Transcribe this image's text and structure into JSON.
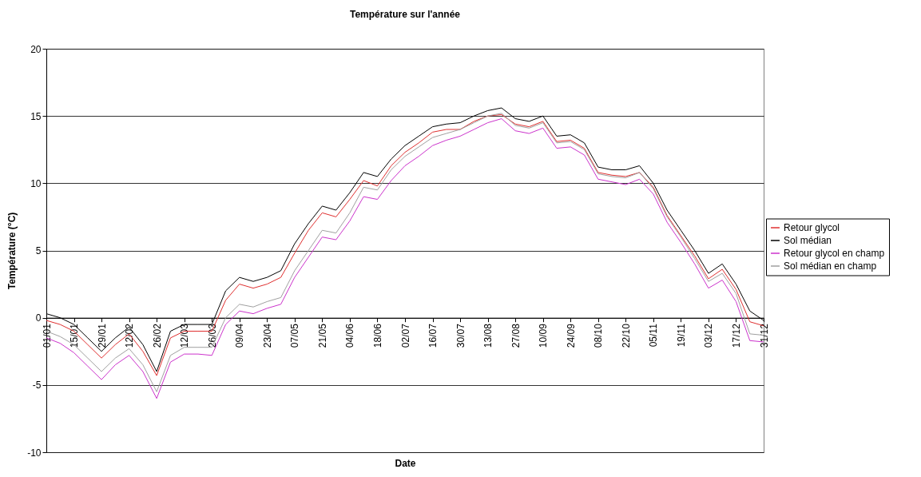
{
  "chart_data": {
    "type": "line",
    "title": "Température sur l'année",
    "xlabel": "Date",
    "ylabel": "Température (°C)",
    "x": [
      "--01-01",
      "--01-08",
      "--01-15",
      "--01-22",
      "--01-29",
      "--02-05",
      "--02-12",
      "--02-19",
      "--02-26",
      "--03-05",
      "--03-12",
      "--03-19",
      "--03-26",
      "--04-02",
      "--04-09",
      "--04-16",
      "--04-23",
      "--04-30",
      "--05-07",
      "--05-14",
      "--05-21",
      "--05-28",
      "--06-04",
      "--06-11",
      "--06-18",
      "--06-25",
      "--07-02",
      "--07-09",
      "--07-16",
      "--07-23",
      "--07-30",
      "--08-06",
      "--08-13",
      "--08-20",
      "--08-27",
      "--09-03",
      "--09-10",
      "--09-17",
      "--09-24",
      "--10-01",
      "--10-08",
      "--10-15",
      "--10-22",
      "--10-29",
      "--11-05",
      "--11-12",
      "--11-19",
      "--11-26",
      "--12-03",
      "--12-10",
      "--12-17",
      "--12-24",
      "--12-31"
    ],
    "series": [
      {
        "name": "Retour glycol",
        "color": "#e03030",
        "values": [
          -0.2,
          -0.5,
          -1.0,
          -2.0,
          -3.0,
          -2.0,
          -1.2,
          -2.5,
          -4.3,
          -1.5,
          -1.0,
          -1.0,
          -1.0,
          1.3,
          2.5,
          2.2,
          2.5,
          3.0,
          4.8,
          6.5,
          7.8,
          7.5,
          8.8,
          10.2,
          9.8,
          11.3,
          12.3,
          13.0,
          13.8,
          14.0,
          14.0,
          14.6,
          15.0,
          15.1,
          14.4,
          14.2,
          14.6,
          13.1,
          13.2,
          12.6,
          10.8,
          10.6,
          10.5,
          10.8,
          9.7,
          7.6,
          6.1,
          4.6,
          2.9,
          3.6,
          2.1,
          -0.3,
          -0.6
        ]
      },
      {
        "name": "Sol médian",
        "color": "#000000",
        "values": [
          0.3,
          0,
          -0.5,
          -1.5,
          -2.5,
          -1.5,
          -0.7,
          -2.0,
          -4.0,
          -1.0,
          -0.5,
          -0.5,
          -0.5,
          2.0,
          3.0,
          2.7,
          3.0,
          3.5,
          5.5,
          7.0,
          8.3,
          8.0,
          9.3,
          10.8,
          10.5,
          11.8,
          12.8,
          13.5,
          14.2,
          14.4,
          14.5,
          15.0,
          15.4,
          15.6,
          14.8,
          14.6,
          15.0,
          13.5,
          13.6,
          13.0,
          11.2,
          11.0,
          11.0,
          11.3,
          10.0,
          8.0,
          6.5,
          5.0,
          3.3,
          4.0,
          2.5,
          0.5,
          -0.2
        ]
      },
      {
        "name": "Retour glycol en champ",
        "color": "#cc33cc",
        "values": [
          -1.5,
          -1.9,
          -2.6,
          -3.6,
          -4.6,
          -3.5,
          -2.8,
          -4.0,
          -6.0,
          -3.3,
          -2.7,
          -2.7,
          -2.8,
          -0.5,
          0.5,
          0.3,
          0.7,
          1.0,
          3.0,
          4.5,
          6.0,
          5.8,
          7.2,
          9.0,
          8.8,
          10.2,
          11.3,
          12.0,
          12.8,
          13.2,
          13.5,
          14.0,
          14.5,
          14.8,
          13.9,
          13.7,
          14.1,
          12.6,
          12.7,
          12.1,
          10.3,
          10.1,
          9.9,
          10.3,
          9.2,
          7.1,
          5.6,
          4.0,
          2.2,
          2.8,
          1.2,
          -1.7,
          -1.8
        ]
      },
      {
        "name": "Sol médian en champ",
        "color": "#a0a0a0",
        "values": [
          -1.0,
          -1.4,
          -2.0,
          -3.0,
          -4.0,
          -3.0,
          -2.3,
          -3.5,
          -5.5,
          -2.8,
          -2.2,
          -2.2,
          -2.2,
          0.0,
          1.0,
          0.8,
          1.2,
          1.5,
          3.5,
          5.0,
          6.5,
          6.3,
          7.8,
          9.7,
          9.5,
          11.0,
          12.0,
          12.7,
          13.4,
          13.7,
          14.0,
          14.5,
          15.0,
          15.2,
          14.3,
          14.1,
          14.5,
          13.0,
          13.1,
          12.5,
          10.7,
          10.5,
          10.4,
          10.8,
          9.6,
          7.5,
          6.0,
          4.4,
          2.7,
          3.3,
          1.8,
          -1.2,
          -1.3
        ]
      }
    ],
    "xlim": [
      "--01-01",
      "--12-31"
    ],
    "xticks": [
      {
        "value": "--01-01",
        "label": "01/01"
      },
      {
        "value": "--01-15",
        "label": "15/01"
      },
      {
        "value": "--01-29",
        "label": "29/01"
      },
      {
        "value": "--02-12",
        "label": "12/02"
      },
      {
        "value": "--02-26",
        "label": "26/02"
      },
      {
        "value": "--03-12",
        "label": "12/03"
      },
      {
        "value": "--03-26",
        "label": "26/03"
      },
      {
        "value": "--04-09",
        "label": "09/04"
      },
      {
        "value": "--04-23",
        "label": "23/04"
      },
      {
        "value": "--05-07",
        "label": "07/05"
      },
      {
        "value": "--05-21",
        "label": "21/05"
      },
      {
        "value": "--06-04",
        "label": "04/06"
      },
      {
        "value": "--06-18",
        "label": "18/06"
      },
      {
        "value": "--07-02",
        "label": "02/07"
      },
      {
        "value": "--07-16",
        "label": "16/07"
      },
      {
        "value": "--07-30",
        "label": "30/07"
      },
      {
        "value": "--08-13",
        "label": "13/08"
      },
      {
        "value": "--08-27",
        "label": "27/08"
      },
      {
        "value": "--09-10",
        "label": "10/09"
      },
      {
        "value": "--09-24",
        "label": "24/09"
      },
      {
        "value": "--10-08",
        "label": "08/10"
      },
      {
        "value": "--10-22",
        "label": "22/10"
      },
      {
        "value": "--11-05",
        "label": "05/11"
      },
      {
        "value": "--11-19",
        "label": "19/11"
      },
      {
        "value": "--12-03",
        "label": "03/12"
      },
      {
        "value": "--12-17",
        "label": "17/12"
      },
      {
        "value": "--12-31",
        "label": "31/12"
      }
    ],
    "ylim": [
      -10,
      20
    ],
    "yticks": [
      -10,
      -5,
      0,
      5,
      10,
      15,
      20
    ],
    "grid": "y",
    "legend": "right"
  }
}
